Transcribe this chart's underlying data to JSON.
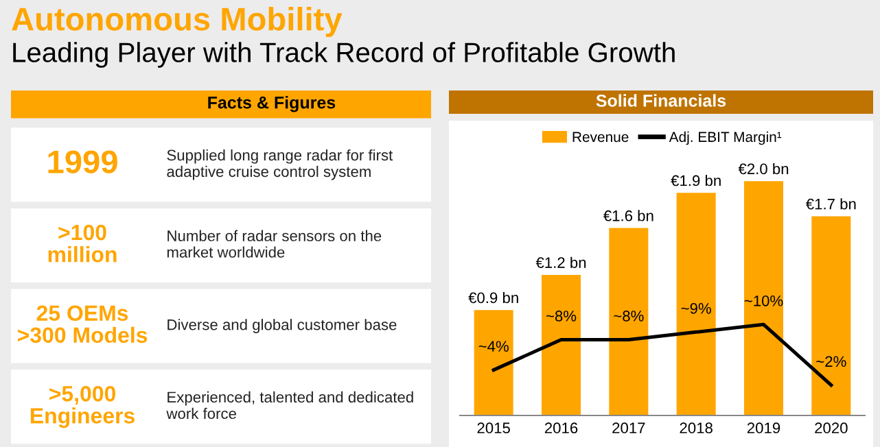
{
  "chart_data": [
    {
      "type": "other",
      "title": "Autonomous Mobility",
      "subtitle": "Leading Player with Track Record of Profitable Growth"
    },
    {
      "type": "other",
      "title": "Facts & Figures",
      "annotations": [
        "1999",
        "Supplied long range radar for first\nadaptive cruise control system",
        ">100\nmillion",
        "Number of radar sensors on the\nmarket worldwide",
        "25 OEMs\n>300 Models",
        "Diverse and global customer base",
        ">5,000\nEngineers",
        "Experienced, talented and dedicated\nwork force"
      ]
    },
    {
      "type": "bar",
      "title": "Solid Financials",
      "categories": [
        "2015",
        "2016",
        "2017",
        "2018",
        "2019",
        "2020"
      ],
      "tick_labels": "x",
      "legend": "top",
      "grid": false,
      "series": [
        {
          "name": "Revenue",
          "type": "bar",
          "color": "#ffa500",
          "values": [
            0.9,
            1.2,
            1.6,
            1.9,
            2.0,
            1.7
          ],
          "value_labels": [
            "€0.9 bn",
            "€1.2 bn",
            "€1.6 bn",
            "€1.9 bn",
            "€2.0 bn",
            "€1.7 bn"
          ]
        },
        {
          "name": "Adj. EBIT Margin¹",
          "type": "line",
          "axis": "y2",
          "color": "#000000",
          "values": [
            4,
            8,
            8,
            9,
            10,
            2
          ],
          "value_labels": [
            "~4%",
            "~8%",
            "~8%",
            "~9%",
            "~10%",
            "~2%"
          ]
        }
      ]
    }
  ]
}
